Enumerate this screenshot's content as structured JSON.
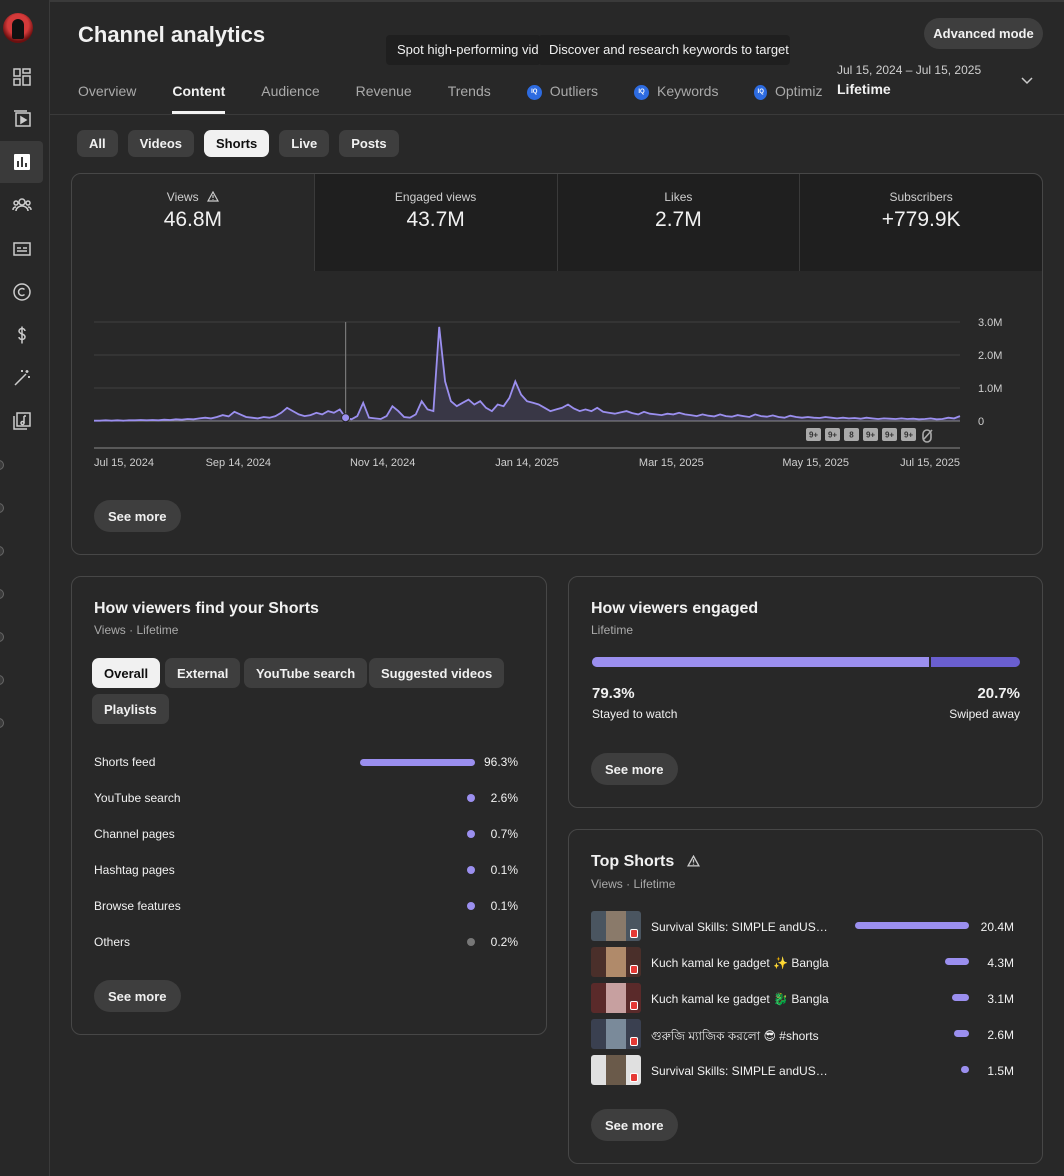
{
  "header": {
    "title": "Channel analytics",
    "tooltip_1": "Spot high-performing videos",
    "tooltip_2": "Discover and research keywords to target",
    "advanced_mode": "Advanced mode"
  },
  "tabs": [
    {
      "label": "Overview"
    },
    {
      "label": "Content"
    },
    {
      "label": "Audience"
    },
    {
      "label": "Revenue"
    },
    {
      "label": "Trends"
    },
    {
      "label": "Outliers",
      "iq": "IQ"
    },
    {
      "label": "Keywords",
      "iq": "IQ"
    },
    {
      "label": "Optimiz",
      "iq": "IQ"
    }
  ],
  "date": {
    "range": "Jul 15, 2024 – Jul 15, 2025",
    "label": "Lifetime"
  },
  "content_chips": [
    "All",
    "Videos",
    "Shorts",
    "Live",
    "Posts"
  ],
  "metrics": [
    {
      "label": "Views",
      "value": "46.8M"
    },
    {
      "label": "Engaged views",
      "value": "43.7M"
    },
    {
      "label": "Likes",
      "value": "2.7M"
    },
    {
      "label": "Subscribers",
      "value": "+779.9K"
    }
  ],
  "chart_data": {
    "type": "line",
    "title": "",
    "series": [
      {
        "values": [
          0.01,
          0.01,
          0.02,
          0.01,
          0.02,
          0.01,
          0.02,
          0.02,
          0.03,
          0.02,
          0.03,
          0.02,
          0.04,
          0.03,
          0.05,
          0.04,
          0.06,
          0.05,
          0.08,
          0.1,
          0.08,
          0.12,
          0.18,
          0.14,
          0.28,
          0.2,
          0.12,
          0.1,
          0.08,
          0.12,
          0.1,
          0.15,
          0.25,
          0.4,
          0.3,
          0.2,
          0.15,
          0.18,
          0.25,
          0.2,
          0.3,
          0.25,
          0.35,
          0.1,
          0.05,
          0.15,
          0.55,
          0.1,
          0.08,
          0.06,
          0.15,
          0.45,
          0.3,
          0.12,
          0.1,
          0.2,
          0.6,
          0.35,
          0.3,
          2.85,
          1.2,
          0.6,
          0.45,
          0.55,
          0.65,
          0.5,
          0.6,
          0.4,
          0.3,
          0.5,
          0.45,
          0.7,
          1.2,
          0.8,
          0.6,
          0.55,
          0.5,
          0.4,
          0.3,
          0.35,
          0.4,
          0.5,
          0.38,
          0.3,
          0.35,
          0.3,
          0.4,
          0.28,
          0.25,
          0.22,
          0.26,
          0.3,
          0.24,
          0.2,
          0.28,
          0.22,
          0.2,
          0.18,
          0.22,
          0.2,
          0.25,
          0.2,
          0.18,
          0.15,
          0.2,
          0.16,
          0.14,
          0.2,
          0.15,
          0.13,
          0.18,
          0.15,
          0.12,
          0.2,
          0.15,
          0.13,
          0.17,
          0.12,
          0.1,
          0.16,
          0.12,
          0.1,
          0.12,
          0.1,
          0.09,
          0.12,
          0.1,
          0.08,
          0.1,
          0.08,
          0.09,
          0.07,
          0.1,
          0.08,
          0.06,
          0.08,
          0.07,
          0.06,
          0.08,
          0.06,
          0.07,
          0.05,
          0.06,
          0.08,
          0.05,
          0.06,
          0.1,
          0.08,
          0.15
        ]
      }
    ],
    "x_tick_labels": [
      "Jul 15, 2024",
      "Sep 14, 2024",
      "Nov 14, 2024",
      "Jan 14, 2025",
      "Mar 15, 2025",
      "May 15, 2025",
      "Jul 15, 2025"
    ],
    "y_tick_labels": [
      "3.0M",
      "2.0M",
      "1.0M",
      "0"
    ],
    "ylim": [
      0,
      3
    ],
    "badges": [
      "9+",
      "9+",
      "8",
      "9+",
      "9+",
      "9+"
    ],
    "grid": true,
    "line_color": "#9b8fef"
  },
  "main_see_more": "See more",
  "find": {
    "title": "How viewers find your Shorts",
    "sub": "Views · Lifetime",
    "chips": [
      "Overall",
      "External",
      "YouTube search",
      "Suggested videos",
      "Playlists"
    ],
    "rows": [
      {
        "name": "Shorts feed",
        "pct": "96.3%",
        "value": 96.3
      },
      {
        "name": "YouTube search",
        "pct": "2.6%",
        "value": 2.6
      },
      {
        "name": "Channel pages",
        "pct": "0.7%",
        "value": 0.7
      },
      {
        "name": "Hashtag pages",
        "pct": "0.1%",
        "value": 0.1
      },
      {
        "name": "Browse features",
        "pct": "0.1%",
        "value": 0.1
      },
      {
        "name": "Others",
        "pct": "0.2%",
        "value": 0.2
      }
    ],
    "see_more": "See more"
  },
  "engaged": {
    "title": "How viewers engaged",
    "sub": "Lifetime",
    "stayed_pct": "79.3%",
    "stayed_label": "Stayed to watch",
    "swiped_pct": "20.7%",
    "swiped_label": "Swiped away",
    "stayed_fraction": 0.793,
    "see_more": "See more"
  },
  "top_shorts": {
    "title": "Top Shorts",
    "sub": "Views · Lifetime",
    "rows": [
      {
        "title": "Survival Skills: SIMPLE andUSEFUL with Bambo",
        "views": "20.4M",
        "value": 20.4
      },
      {
        "title": "Kuch kamal ke gadget ✨ Bangla",
        "views": "4.3M",
        "value": 4.3
      },
      {
        "title": "Kuch kamal ke gadget 🐉 Bangla",
        "views": "3.1M",
        "value": 3.1
      },
      {
        "title": "গুরুজি ম্যাজিক করলো 😎 #shorts",
        "views": "2.6M",
        "value": 2.6
      },
      {
        "title": "Survival Skills: SIMPLE andUSEFUL in forest",
        "views": "1.5M",
        "value": 1.5
      }
    ],
    "see_more": "See more"
  },
  "colors": {
    "accent": "#9b8fef",
    "accent_dark": "#6a5fd0",
    "background": "#282828"
  }
}
